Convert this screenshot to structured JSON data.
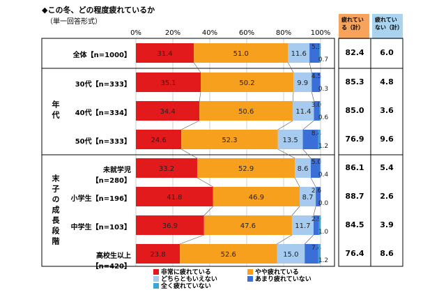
{
  "title": "◆この冬、どの程度疲れているか",
  "subtitle": "（単一回答形式）",
  "header_tired": "疲れている（計）",
  "header_not_tired": "疲れていない（計）",
  "groups": [
    {
      "label": "年代"
    },
    {
      "label": "末子の成長段階"
    }
  ],
  "colors": {
    "very_tired": "#e31a1c",
    "somewhat_tired": "#f7a01e",
    "neither": "#a6cbee",
    "not_very": "#3a6fd8",
    "not_at_all": "#3aa6d6"
  },
  "chart_data": {
    "type": "bar",
    "orientation": "horizontal",
    "stacked": true,
    "xlim": [
      0,
      100
    ],
    "x_ticks": [
      "0%",
      "20%",
      "40%",
      "60%",
      "80%",
      "100%"
    ],
    "categories": [
      "全体【n=1000】",
      "30代【n=333】",
      "40代【n=334】",
      "50代【n=333】",
      "未就学児【n=280】",
      "小学生【n=196】",
      "中学生【n=103】",
      "高校生以上【n=420】"
    ],
    "series": [
      {
        "name": "非常に疲れている",
        "values": [
          31.4,
          35.1,
          34.4,
          24.6,
          33.2,
          41.8,
          36.9,
          23.8
        ]
      },
      {
        "name": "やや疲れている",
        "values": [
          51.0,
          50.2,
          50.6,
          52.3,
          52.9,
          46.9,
          47.6,
          52.6
        ]
      },
      {
        "name": "どちらともいえない",
        "values": [
          11.6,
          9.9,
          11.4,
          13.5,
          8.6,
          8.7,
          11.7,
          15.0
        ]
      },
      {
        "name": "あまり疲れていない",
        "values": [
          5.3,
          4.5,
          3.0,
          8.4,
          5.0,
          2.6,
          2.9,
          7.4
        ]
      },
      {
        "name": "全く疲れていない",
        "values": [
          0.7,
          0.3,
          0.6,
          1.2,
          0.4,
          0.0,
          1.0,
          1.2
        ]
      }
    ],
    "tired_total": [
      "82.4",
      "85.3",
      "85.0",
      "76.9",
      "86.1",
      "88.7",
      "84.5",
      "76.4"
    ],
    "not_tired_total": [
      "6.0",
      "4.8",
      "3.6",
      "9.6",
      "5.4",
      "2.6",
      "3.9",
      "8.6"
    ],
    "legend": [
      "非常に疲れている",
      "やや疲れている",
      "どちらともいえない",
      "あまり疲れていない",
      "全く疲れていない"
    ]
  }
}
